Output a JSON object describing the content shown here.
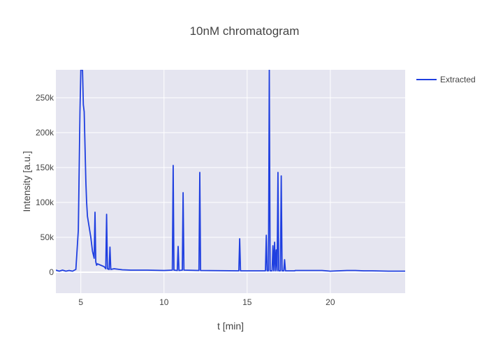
{
  "chart_data": {
    "type": "line",
    "title": "10nM chromatogram",
    "xlabel": "t [min]",
    "ylabel": "Intensity [a.u.]",
    "xlim": [
      3.5,
      24.5
    ],
    "ylim": [
      -30000,
      290000
    ],
    "xticks": [
      5,
      10,
      15,
      20
    ],
    "xtick_labels": [
      "5",
      "10",
      "15",
      "20"
    ],
    "yticks": [
      0,
      50000,
      100000,
      150000,
      200000,
      250000
    ],
    "ytick_labels": [
      "0",
      "50k",
      "100k",
      "150k",
      "200k",
      "250k"
    ],
    "grid": true,
    "legend_position": "top-right",
    "series": [
      {
        "name": "Extracted",
        "color": "#1f3fe0",
        "x": [
          3.5,
          3.7,
          3.9,
          4.1,
          4.3,
          4.5,
          4.7,
          4.85,
          4.95,
          5.0,
          5.05,
          5.1,
          5.15,
          5.2,
          5.25,
          5.3,
          5.35,
          5.4,
          5.5,
          5.6,
          5.7,
          5.8,
          5.85,
          5.9,
          5.95,
          6.0,
          6.2,
          6.4,
          6.5,
          6.55,
          6.6,
          6.7,
          6.75,
          6.8,
          7.0,
          7.5,
          8.0,
          9.0,
          10.0,
          10.5,
          10.55,
          10.6,
          10.8,
          10.85,
          10.9,
          11.1,
          11.15,
          11.2,
          12.1,
          12.15,
          12.2,
          14.5,
          14.55,
          14.6,
          16.1,
          16.15,
          16.2,
          16.28,
          16.33,
          16.38,
          16.5,
          16.55,
          16.6,
          16.65,
          16.7,
          16.75,
          16.8,
          16.85,
          16.9,
          16.95,
          17.0,
          17.05,
          17.1,
          17.2,
          17.25,
          17.3,
          17.8,
          17.85,
          17.9,
          18.5,
          19.5,
          20.0,
          21.0,
          21.5,
          22.0,
          22.5,
          23.5,
          24.5
        ],
        "y": [
          3000,
          1500,
          3000,
          1500,
          2500,
          1500,
          4000,
          60000,
          230000,
          290000,
          290000,
          290000,
          240000,
          230000,
          180000,
          130000,
          100000,
          80000,
          65000,
          50000,
          30000,
          20000,
          86000,
          15000,
          10000,
          12000,
          10000,
          8000,
          5000,
          83000,
          5000,
          4000,
          36000,
          4000,
          5000,
          3500,
          3000,
          3000,
          2500,
          3000,
          153000,
          3000,
          2500,
          37000,
          2500,
          3000,
          114000,
          3000,
          2500,
          143000,
          2500,
          2000,
          48000,
          2000,
          2000,
          53000,
          2000,
          2000,
          290000,
          2000,
          2000,
          38000,
          2000,
          43000,
          2000,
          32000,
          2000,
          143000,
          2000,
          2000,
          2000,
          138000,
          2000,
          2000,
          18000,
          2000,
          2000,
          2000,
          2500,
          2500,
          2500,
          1500,
          2500,
          2500,
          2000,
          2000,
          1500,
          1500
        ]
      }
    ]
  }
}
